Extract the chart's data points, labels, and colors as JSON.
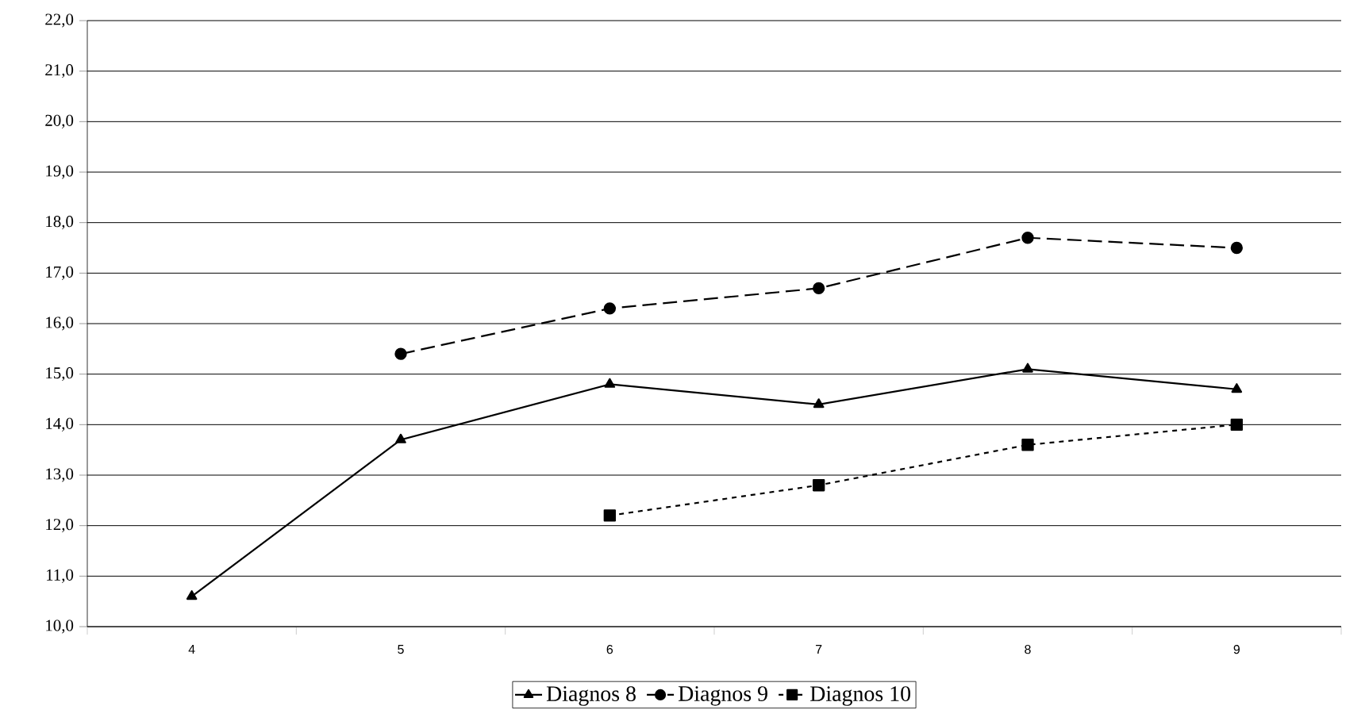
{
  "chart_data": {
    "type": "line",
    "categories": [
      "4",
      "5",
      "6",
      "7",
      "8",
      "9"
    ],
    "series": [
      {
        "name": "Diagnos 8",
        "color": "#000000",
        "values": [
          10.6,
          13.7,
          14.8,
          14.4,
          15.1,
          14.7
        ],
        "marker": "triangle",
        "line_style": "solid"
      },
      {
        "name": "Diagnos 9",
        "color": "#000000",
        "values": [
          null,
          15.4,
          16.3,
          16.7,
          17.7,
          17.5
        ],
        "marker": "circle",
        "line_style": "dashed"
      },
      {
        "name": "Diagnos 10",
        "color": "#000000",
        "values": [
          null,
          null,
          12.2,
          12.8,
          13.6,
          14.0
        ],
        "marker": "square",
        "line_style": "dotted"
      }
    ],
    "ylim": [
      10,
      22
    ],
    "yticks": [
      {
        "value": 10,
        "label": "10,0"
      },
      {
        "value": 11,
        "label": "11,0"
      },
      {
        "value": 12,
        "label": "12,0"
      },
      {
        "value": 13,
        "label": "13,0"
      },
      {
        "value": 14,
        "label": "14,0"
      },
      {
        "value": 15,
        "label": "15,0"
      },
      {
        "value": 16,
        "label": "16,0"
      },
      {
        "value": 17,
        "label": "17,0"
      },
      {
        "value": 18,
        "label": "18,0"
      },
      {
        "value": 19,
        "label": "19,0"
      },
      {
        "value": 20,
        "label": "20,0"
      },
      {
        "value": 21,
        "label": "21,0"
      },
      {
        "value": 22,
        "label": "22,0"
      }
    ],
    "grid": "y",
    "legend": "bottom"
  }
}
